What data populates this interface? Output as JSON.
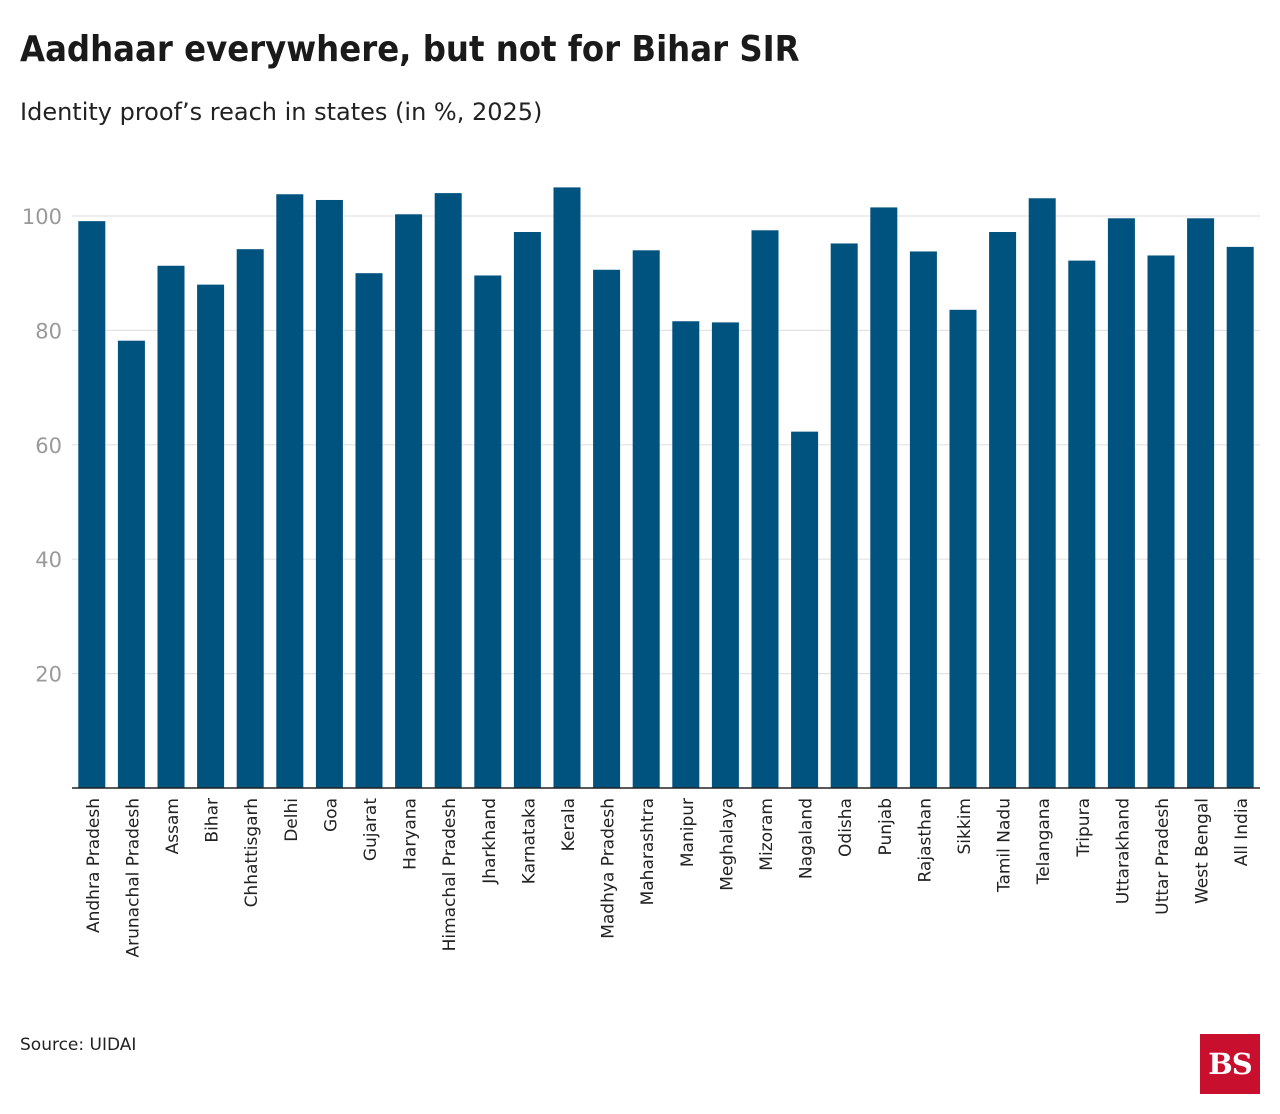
{
  "title": "Aadhaar everywhere, but not for Bihar SIR",
  "subtitle": "Identity proof’s reach in states (in %, 2025)",
  "source": "Source: UIDAI",
  "logo": {
    "text": "BS",
    "color": "#c8102e"
  },
  "colors": {
    "bar": "#00527f",
    "grid": "#e3e3e3",
    "axis": "#222222",
    "tick_label": "#9a9a9a",
    "category_label": "#222222"
  },
  "chart_data": {
    "type": "bar",
    "title": "Aadhaar everywhere, but not for Bihar SIR",
    "subtitle": "Identity proof’s reach in states (in %, 2025)",
    "xlabel": "",
    "ylabel": "",
    "ylim": [
      0,
      110
    ],
    "yticks": [
      20,
      40,
      60,
      80,
      100
    ],
    "grid": true,
    "categories": [
      "Andhra Pradesh",
      "Arunachal Pradesh",
      "Assam",
      "Bihar",
      "Chhattisgarh",
      "Delhi",
      "Goa",
      "Gujarat",
      "Haryana",
      "Himachal Pradesh",
      "Jharkhand",
      "Karnataka",
      "Kerala",
      "Madhya Pradesh",
      "Maharashtra",
      "Manipur",
      "Meghalaya",
      "Mizoram",
      "Nagaland",
      "Odisha",
      "Punjab",
      "Rajasthan",
      "Sikkim",
      "Tamil Nadu",
      "Telangana",
      "Tripura",
      "Uttarakhand",
      "Uttar Pradesh",
      "West Bengal",
      "All India"
    ],
    "values": [
      99.1,
      78.2,
      91.3,
      88.0,
      94.2,
      103.8,
      102.8,
      90.0,
      100.3,
      104.0,
      89.6,
      97.2,
      105.0,
      90.6,
      94.0,
      81.6,
      81.4,
      97.5,
      62.3,
      95.2,
      101.5,
      93.8,
      83.6,
      97.2,
      103.1,
      92.2,
      99.6,
      93.1,
      99.6,
      94.6
    ]
  }
}
